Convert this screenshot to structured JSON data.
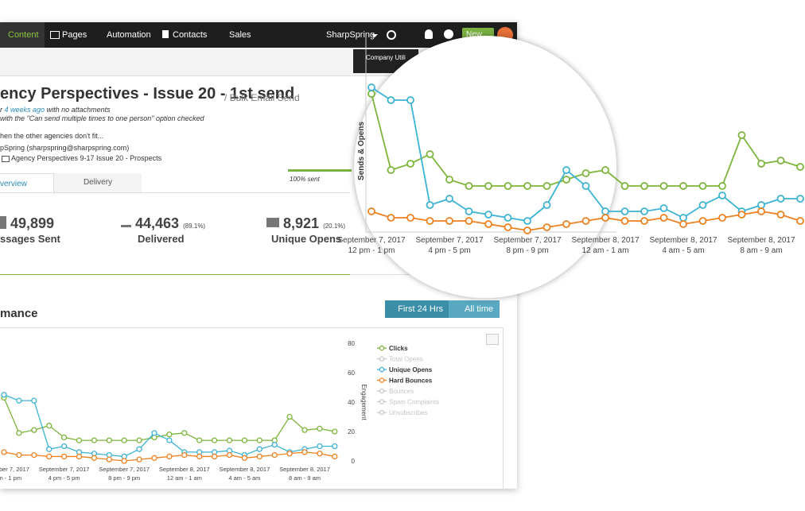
{
  "nav": {
    "items": [
      "Content",
      "Pages",
      "Automation",
      "Contacts",
      "Sales"
    ],
    "account": "SharpSpring",
    "new_button": "New",
    "tooltip": "Company Utili"
  },
  "email": {
    "title": "ency Perspectives - Issue 20 - 1st send",
    "subtitle": "/ Bulk Email Send",
    "sent_prefix": "r",
    "sent_link": "4 weeks ago",
    "sent_suffix": "with no attachments",
    "option_note": "with the \"Can send multiple times to one person\" option checked",
    "description": "hen the other agencies don't fit...",
    "sender": "pSpring (sharpspring@sharpspring.com)",
    "list": "Agency Perspectives 9-17 Issue 20 - Prospects"
  },
  "tabs": [
    "verview",
    "Delivery"
  ],
  "progress_label": "100% sent",
  "stats": [
    {
      "value": "49,899",
      "label": "ssages Sent"
    },
    {
      "value": "44,463",
      "percent": "(89.1%)",
      "label": "Delivered"
    },
    {
      "value": "8,921",
      "percent": "(20.1%)",
      "label": "Unique Opens"
    }
  ],
  "section_title": "mance",
  "range_buttons": [
    "First 24 Hrs",
    "All time"
  ],
  "chart_data": {
    "type": "line",
    "ylabel": "Sends & Opens",
    "y2label": "Engagement",
    "categories": [
      "September 7, 2017\n12 pm - 1 pm",
      null,
      null,
      null,
      "September 7, 2017\n4 pm - 5 pm",
      null,
      null,
      null,
      "September 7, 2017\n8 pm - 9 pm",
      null,
      null,
      null,
      "September 8, 2017\n12 am - 1 am",
      null,
      null,
      null,
      "September 8, 2017\n4 am - 5 am",
      null,
      null,
      null,
      "September 8, 2017\n8 am - 9 am",
      null,
      null
    ],
    "y2lim": [
      0,
      80
    ],
    "y2ticks": [
      0,
      20,
      40,
      60,
      80
    ],
    "series": [
      {
        "name": "Clicks",
        "color": "#7cb53a",
        "axis": "y2",
        "values": [
          43,
          19,
          21,
          24,
          16,
          14,
          14,
          14,
          14,
          14,
          16,
          18,
          19,
          14,
          14,
          14,
          14,
          14,
          14,
          30,
          21,
          22,
          20
        ]
      },
      {
        "name": "Total Opens",
        "color": "#c8c8c8",
        "visible": false
      },
      {
        "name": "Unique Opens",
        "color": "#3db3d4",
        "axis": "y2",
        "values": [
          45,
          41,
          41,
          8,
          10,
          6,
          5,
          4,
          3,
          8,
          19,
          14,
          6,
          6,
          6,
          7,
          4,
          8,
          11,
          6,
          8,
          10,
          10
        ]
      },
      {
        "name": "Hard Bounces",
        "color": "#f0801e",
        "axis": "y2",
        "values": [
          6,
          4,
          4,
          3,
          3,
          3,
          2,
          1,
          0,
          1,
          2,
          3,
          4,
          3,
          3,
          4,
          2,
          3,
          4,
          5,
          6,
          5,
          3
        ]
      },
      {
        "name": "Bounces",
        "color": "#c8c8c8",
        "visible": false
      },
      {
        "name": "Spam Complaints",
        "color": "#c8c8c8",
        "visible": false
      },
      {
        "name": "Unsubscribes",
        "color": "#c8c8c8",
        "visible": false
      }
    ]
  }
}
